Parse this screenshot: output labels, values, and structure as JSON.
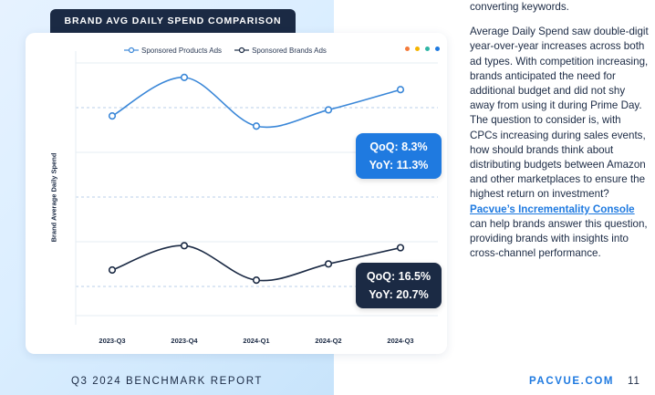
{
  "banner": {
    "title": "BRAND AVG DAILY SPEND COMPARISON"
  },
  "chart_data": {
    "type": "line",
    "categories": [
      "2023-Q3",
      "2023-Q4",
      "2024-Q1",
      "2024-Q2",
      "2024-Q3"
    ],
    "ylabel": "Brand Average Daily Spend",
    "xlabel": "",
    "legend": "top-center",
    "grid": true,
    "series": [
      {
        "name": "Sponsored Products Ads",
        "color": "#3a87d8",
        "values": [
          0.53,
          0.72,
          0.48,
          0.56,
          0.66
        ]
      },
      {
        "name": "Sponsored Brands Ads",
        "color": "#1b2a44",
        "values": [
          -0.23,
          -0.11,
          -0.28,
          -0.2,
          -0.12
        ]
      }
    ]
  },
  "callouts": [
    {
      "qoq": "QoQ: 8.3%",
      "yoy": "YoY: 11.3%",
      "color": "#1f7ae0"
    },
    {
      "qoq": "QoQ: 16.5%",
      "yoy": "YoY: 20.7%",
      "color": "#1b2a44"
    }
  ],
  "decor_dots": [
    "#f47b3a",
    "#f5b400",
    "#2fb5a5",
    "#1f7ae0"
  ],
  "body": {
    "intro": "converting keywords.",
    "paragraph": "Average Daily Spend saw double-digit year-over-year increases across both ad types. With competition increasing, brands anticipated the need for additional budget and did not shy away from using it during Prime Day. The question to consider is, with CPCs increasing during sales events, how should brands think about distributing budgets between Amazon and other marketplaces to ensure the highest return on investment?",
    "link": "Pacvue’s Incrementality Console",
    "after_link": " can help brands answer this question, providing brands with insights into cross-channel performance."
  },
  "footer": {
    "report": "Q3 2024 BENCHMARK REPORT",
    "site": "PACVUE.COM",
    "page": "11"
  }
}
